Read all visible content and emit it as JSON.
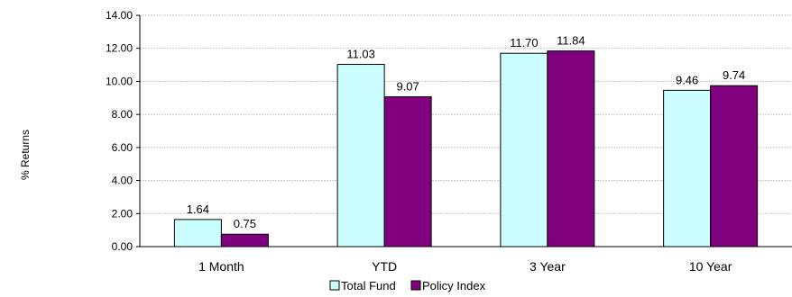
{
  "chart_data": {
    "type": "bar",
    "title": "",
    "xlabel": "",
    "ylabel": "% Returns",
    "ylim": [
      0,
      14
    ],
    "yticks": [
      "0.00",
      "2.00",
      "4.00",
      "6.00",
      "8.00",
      "10.00",
      "12.00",
      "14.00"
    ],
    "categories": [
      "1 Month",
      "YTD",
      "3 Year",
      "10 Year"
    ],
    "series": [
      {
        "name": "Total Fund",
        "values": [
          1.64,
          11.03,
          11.7,
          9.46
        ],
        "labels": [
          "1.64",
          "11.03",
          "11.70",
          "9.46"
        ],
        "color": "#ccffff"
      },
      {
        "name": "Policy Index",
        "values": [
          0.75,
          9.07,
          11.84,
          9.74
        ],
        "labels": [
          "0.75",
          "9.07",
          "11.84",
          "9.74"
        ],
        "color": "#800080"
      }
    ],
    "grid": true,
    "legend_position": "bottom"
  }
}
